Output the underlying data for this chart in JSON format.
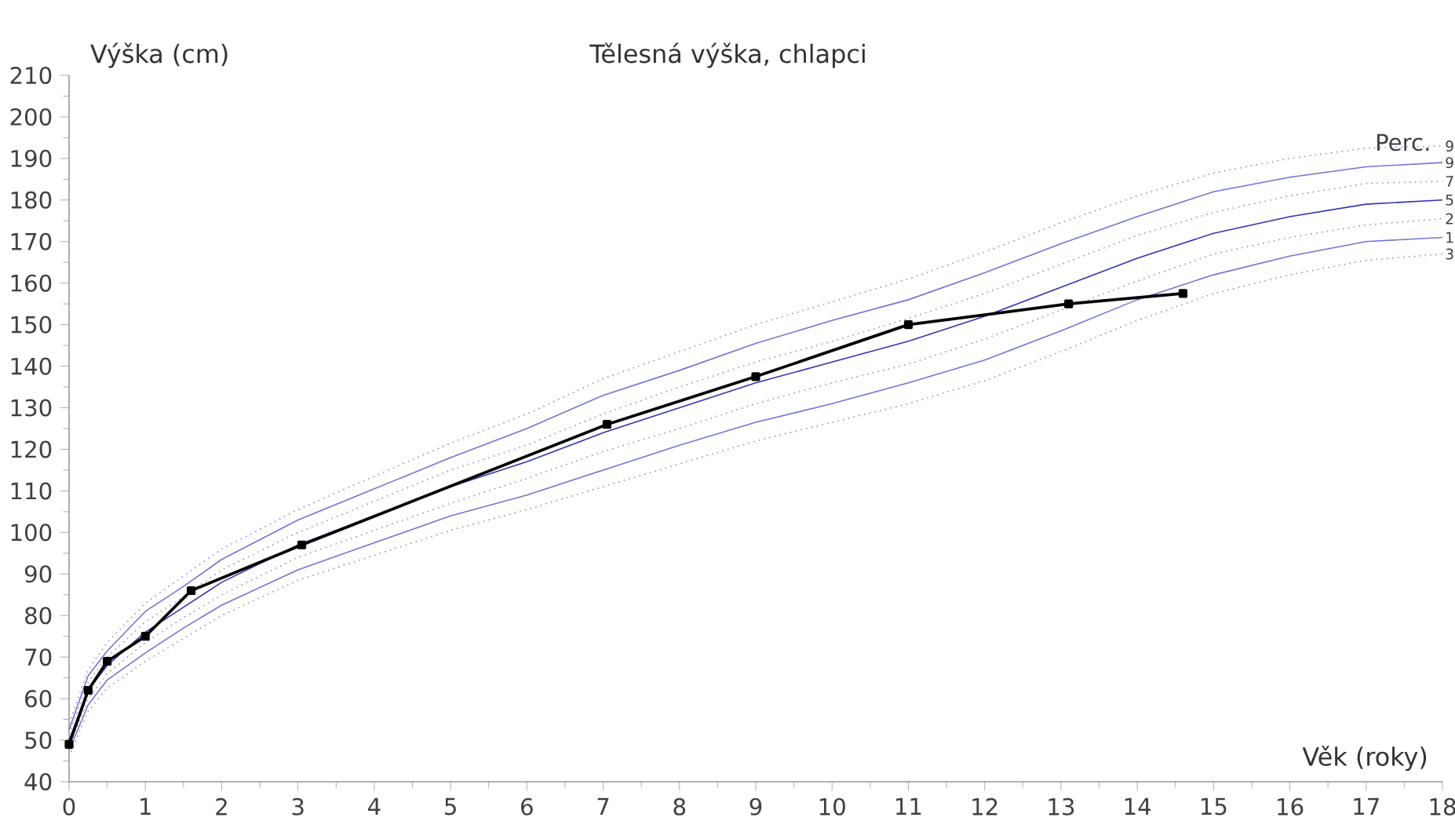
{
  "chart_data": {
    "type": "line",
    "title": "Tělesná výška, chlapci",
    "ylabel": "Výška (cm)",
    "xlabel": "Věk (roky)",
    "legend_title": "Perc.",
    "xlim": [
      0,
      18
    ],
    "ylim": [
      40,
      210
    ],
    "xticks": [
      0,
      1,
      2,
      3,
      4,
      5,
      6,
      7,
      8,
      9,
      10,
      11,
      12,
      13,
      14,
      15,
      16,
      17,
      18
    ],
    "yticks": [
      40,
      50,
      60,
      70,
      80,
      90,
      100,
      110,
      120,
      130,
      140,
      150,
      160,
      170,
      180,
      190,
      200,
      210
    ],
    "x": [
      0,
      0.25,
      0.5,
      1,
      1.5,
      2,
      3,
      4,
      5,
      6,
      7,
      8,
      9,
      10,
      11,
      12,
      13,
      14,
      15,
      16,
      17,
      18
    ],
    "series": [
      {
        "name": "9",
        "color": "#8c8ce6",
        "line_style": "dotted",
        "marker": "none",
        "values": [
          54,
          67,
          73.5,
          83,
          89.5,
          96,
          105.5,
          113.5,
          121.5,
          128.5,
          137,
          143.5,
          150,
          155.5,
          161,
          167.5,
          174.5,
          181,
          186.5,
          190,
          192.5,
          193
        ]
      },
      {
        "name": "9",
        "color": "#7474d6",
        "line_style": "solid",
        "marker": "none",
        "values": [
          52.5,
          65.5,
          71.5,
          81,
          87,
          93.5,
          103,
          110.5,
          118,
          125,
          133,
          139,
          145.5,
          151,
          156,
          162.5,
          169.5,
          176,
          182,
          185.5,
          188,
          189
        ]
      },
      {
        "name": "7",
        "color": "#8c8ce6",
        "line_style": "dotted",
        "marker": "none",
        "values": [
          51.5,
          64,
          70,
          78.5,
          84.5,
          91,
          100,
          107.5,
          115,
          121,
          128.5,
          135,
          141,
          146,
          151.5,
          157.5,
          164.5,
          171.5,
          177,
          181,
          184,
          184.5
        ]
      },
      {
        "name": "5",
        "color": "#3333b3",
        "line_style": "solid",
        "marker": "none",
        "values": [
          50,
          62,
          68,
          76,
          82,
          88,
          97,
          104,
          111,
          117,
          124,
          130,
          136,
          141,
          146,
          152,
          159,
          166,
          172,
          176,
          179,
          180
        ]
      },
      {
        "name": "2",
        "color": "#8c8ce6",
        "line_style": "dotted",
        "marker": "none",
        "values": [
          48.5,
          60,
          66,
          73.5,
          79.5,
          85,
          94,
          100.5,
          107,
          113,
          119.5,
          125,
          131,
          136,
          140.5,
          146.5,
          153.5,
          160.5,
          167,
          171,
          174,
          175.5
        ]
      },
      {
        "name": "1",
        "color": "#7474d6",
        "line_style": "solid",
        "marker": "none",
        "values": [
          47.5,
          58.5,
          64.5,
          71,
          77,
          82.5,
          91,
          97.5,
          104,
          109,
          115,
          121,
          126.5,
          131,
          136,
          141.5,
          148.5,
          156,
          162,
          166.5,
          170,
          171
        ]
      },
      {
        "name": "3",
        "color": "#8c8ce6",
        "line_style": "dotted",
        "marker": "none",
        "values": [
          46,
          57,
          62.5,
          69,
          74.5,
          80,
          88.5,
          94.5,
          100.5,
          105.5,
          111,
          116.5,
          122,
          126.5,
          131,
          136.5,
          143.5,
          151,
          157.5,
          162,
          165.5,
          167
        ]
      },
      {
        "color": "#000000",
        "line_style": "solid",
        "marker": "square",
        "x": [
          0,
          0.25,
          0.5,
          1,
          1.6,
          3.05,
          7.05,
          9,
          11,
          13.1,
          14.6
        ],
        "values": [
          49,
          62,
          69,
          75,
          86,
          97,
          126,
          137.5,
          150,
          155,
          157.5
        ]
      }
    ]
  }
}
